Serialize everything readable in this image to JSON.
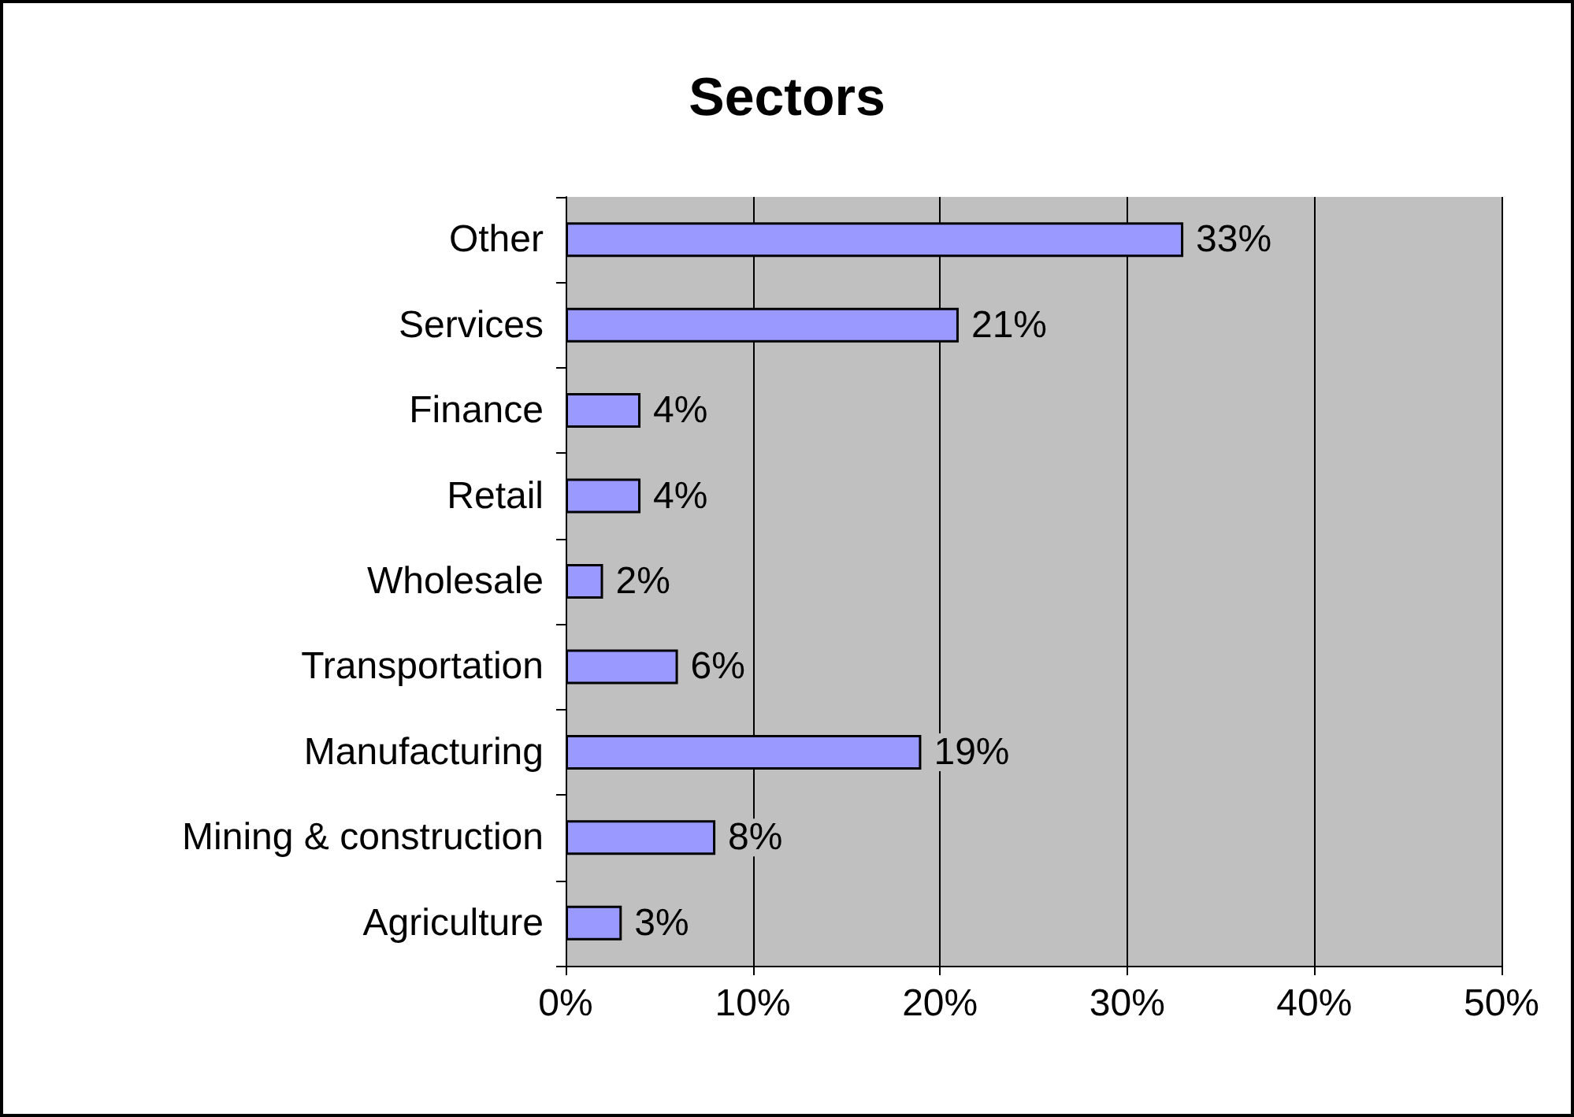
{
  "chart_data": {
    "type": "bar",
    "orientation": "horizontal",
    "title": "Sectors",
    "categories": [
      "Other",
      "Services",
      "Finance",
      "Retail",
      "Wholesale",
      "Transportation",
      "Manufacturing",
      "Mining & construction",
      "Agriculture"
    ],
    "values": [
      33,
      21,
      4,
      4,
      2,
      6,
      19,
      8,
      3
    ],
    "value_labels": [
      "33%",
      "21%",
      "4%",
      "4%",
      "2%",
      "6%",
      "19%",
      "8%",
      "3%"
    ],
    "color": "#9999ff",
    "xlim": [
      0,
      50
    ],
    "xticks": [
      {
        "value": 0,
        "label": "0%"
      },
      {
        "value": 10,
        "label": "10%"
      },
      {
        "value": 20,
        "label": "20%"
      },
      {
        "value": 30,
        "label": "30%"
      },
      {
        "value": 40,
        "label": "40%"
      },
      {
        "value": 50,
        "label": "50%"
      }
    ],
    "grid": "x"
  }
}
